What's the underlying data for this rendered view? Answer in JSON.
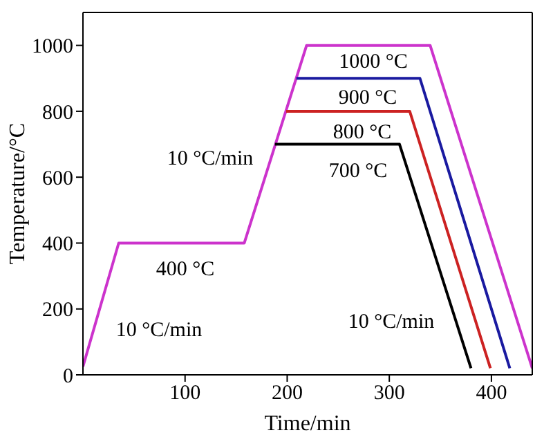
{
  "chart_data": {
    "type": "line",
    "xlabel": "Time/min",
    "ylabel": "Temperature/°C",
    "xlim": [
      0,
      440
    ],
    "ylim": [
      0,
      1100
    ],
    "xticks": [
      100,
      200,
      300,
      400
    ],
    "yticks": [
      0,
      200,
      400,
      600,
      800,
      1000
    ],
    "series": [
      {
        "color": "#cc33cc",
        "x": [
          0,
          35,
          158,
          219,
          340,
          440
        ],
        "values": [
          25,
          400,
          400,
          1000,
          1000,
          20
        ]
      },
      {
        "color": "#1a1aa0",
        "x": [
          209,
          330,
          418
        ],
        "values": [
          900,
          900,
          20
        ]
      },
      {
        "color": "#cc2222",
        "x": [
          199,
          320,
          399
        ],
        "values": [
          800,
          800,
          20
        ]
      },
      {
        "color": "#000000",
        "x": [
          188,
          310,
          380
        ],
        "values": [
          700,
          700,
          20
        ]
      }
    ],
    "annotations": [
      "10 °C/min",
      "400 °C",
      "10 °C/min",
      "1000 °C",
      "900 °C",
      "800 °C",
      "700 °C",
      "10 °C/min"
    ]
  }
}
